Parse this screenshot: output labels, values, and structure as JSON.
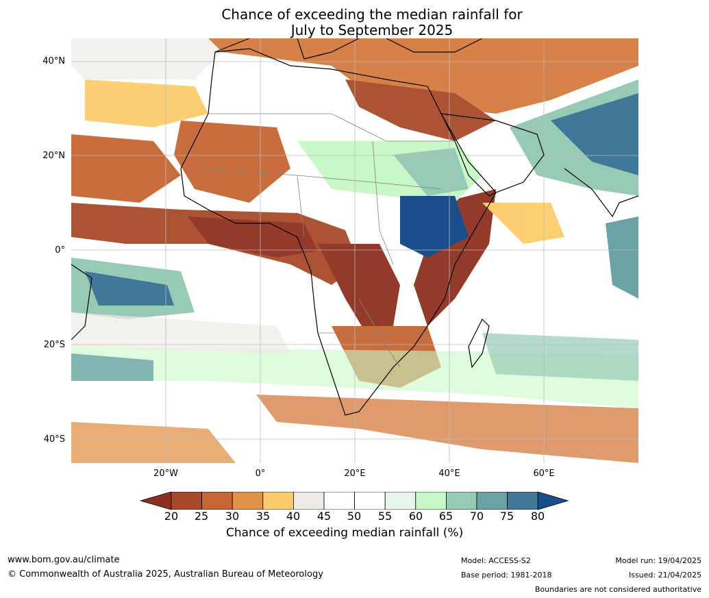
{
  "title": {
    "line1": "Chance of exceeding the median rainfall for",
    "line2": "July to September 2025"
  },
  "axes": {
    "lat_ticks": [
      "40°N",
      "20°N",
      "0°",
      "20°S",
      "40°S"
    ],
    "lon_ticks": [
      "20°W",
      "0°",
      "20°E",
      "40°E",
      "60°E"
    ]
  },
  "colorbar": {
    "label": "Chance of exceeding median rainfall (%)",
    "ticks": [
      "20",
      "25",
      "30",
      "35",
      "40",
      "45",
      "50",
      "55",
      "60",
      "65",
      "70",
      "75",
      "80"
    ],
    "colors": [
      "#8e3020",
      "#a84a2a",
      "#c86634",
      "#e09448",
      "#fccc6c",
      "#eeebe6",
      "#ffffff",
      "#ffffff",
      "#e6f5e9",
      "#c8f8c8",
      "#96cab5",
      "#6aa2a6",
      "#3f7898",
      "#1a4e8a"
    ]
  },
  "footer": {
    "website": "www.bom.gov.au/climate",
    "copyright": "© Commonwealth of Australia 2025, Australian Bureau of Meteorology",
    "model": "Model: ACCESS-S2",
    "base_period": "Base period: 1981-2018",
    "model_run": "Model run: 19/04/2025",
    "issued": "Issued: 21/04/2025",
    "disclaimer": "Boundaries are not considered authoritative"
  }
}
